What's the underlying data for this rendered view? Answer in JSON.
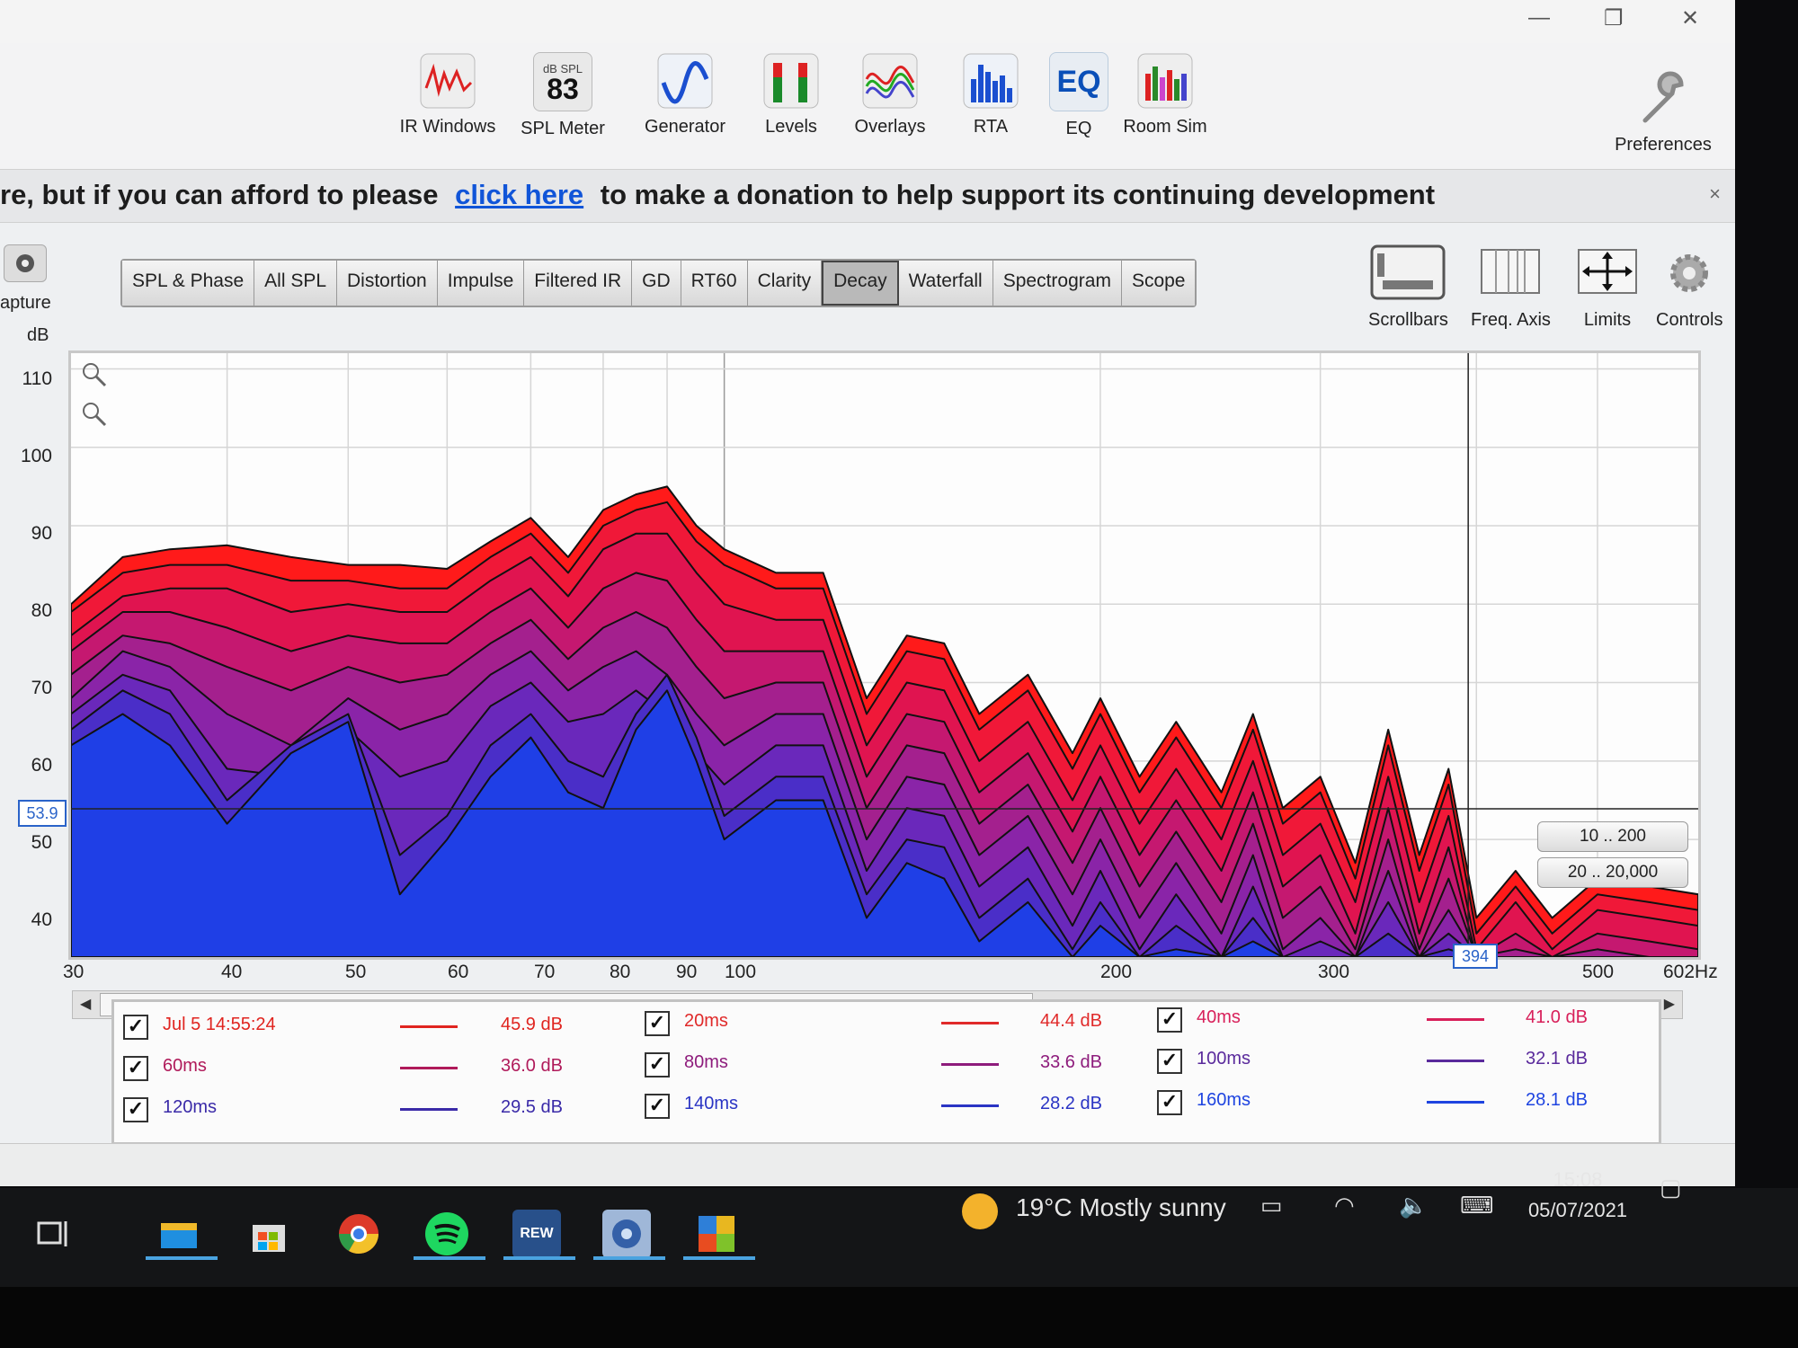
{
  "toolbar": {
    "items": [
      {
        "label": "IR Windows",
        "icon": "ir-windows-icon"
      },
      {
        "label": "SPL Meter",
        "icon": "spl-meter-icon",
        "badge_top": "dB SPL",
        "badge_value": "83"
      },
      {
        "label": "Generator",
        "icon": "generator-icon"
      },
      {
        "label": "Levels",
        "icon": "levels-icon"
      },
      {
        "label": "Overlays",
        "icon": "overlays-icon"
      },
      {
        "label": "RTA",
        "icon": "rta-icon"
      },
      {
        "label": "EQ",
        "icon": "eq-icon",
        "badge": "EQ"
      },
      {
        "label": "Room Sim",
        "icon": "room-sim-icon"
      },
      {
        "label": "Preferences",
        "icon": "wrench-icon"
      }
    ]
  },
  "banner": {
    "text_before": "re, but if you can afford to please",
    "link": "click here",
    "text_after": "to make a donation to help support its continuing development",
    "close": "×"
  },
  "left_panel": {
    "capture_label": "apture",
    "y_unit": "dB"
  },
  "tabs": [
    {
      "label": "SPL & Phase",
      "active": false
    },
    {
      "label": "All SPL",
      "active": false
    },
    {
      "label": "Distortion",
      "active": false
    },
    {
      "label": "Impulse",
      "active": false
    },
    {
      "label": "Filtered IR",
      "active": false
    },
    {
      "label": "GD",
      "active": false
    },
    {
      "label": "RT60",
      "active": false
    },
    {
      "label": "Clarity",
      "active": false
    },
    {
      "label": "Decay",
      "active": true
    },
    {
      "label": "Waterfall",
      "active": false
    },
    {
      "label": "Spectrogram",
      "active": false
    },
    {
      "label": "Scope",
      "active": false
    }
  ],
  "right_tools": [
    {
      "label": "Scrollbars",
      "icon": "scrollbars-icon"
    },
    {
      "label": "Freq. Axis",
      "icon": "freq-axis-icon"
    },
    {
      "label": "Limits",
      "icon": "limits-icon"
    },
    {
      "label": "Controls",
      "icon": "gear-icon"
    }
  ],
  "cursor": {
    "y_readout": "53.9",
    "x_readout": "394"
  },
  "range_buttons": [
    "10 .. 200",
    "20 .. 20,000"
  ],
  "chart_data": {
    "type": "area",
    "x_scale": "log",
    "xlim": [
      30,
      602
    ],
    "ylim": [
      35,
      112
    ],
    "xlabel": "",
    "ylabel": "dB",
    "x_ticks": [
      "30",
      "40",
      "50",
      "60",
      "70",
      "80",
      "90",
      "100",
      "200",
      "300",
      "500",
      "602Hz"
    ],
    "y_ticks": [
      "110",
      "100",
      "90",
      "80",
      "70",
      "60",
      "50",
      "40"
    ],
    "grid": true,
    "series": [
      {
        "name": "Jul 5 14:55:24",
        "color": "#ff1a1a",
        "x": [
          30,
          33,
          36,
          40,
          45,
          50,
          55,
          60,
          65,
          70,
          75,
          80,
          85,
          90,
          95,
          100,
          110,
          120,
          130,
          140,
          150,
          160,
          175,
          190,
          200,
          215,
          230,
          250,
          265,
          280,
          300,
          320,
          340,
          360,
          380,
          400,
          430,
          460,
          500,
          550,
          602
        ],
        "values": [
          80,
          86,
          87,
          87.5,
          86,
          85,
          85,
          84.5,
          88,
          91,
          86,
          92,
          94,
          95,
          90,
          87,
          84,
          84,
          68,
          76,
          75,
          66,
          71,
          61,
          68,
          58,
          65,
          56,
          66,
          54,
          58,
          47,
          64,
          48,
          59,
          40,
          46,
          40,
          45,
          44,
          43
        ]
      },
      {
        "name": "20ms",
        "color": "#f01838",
        "x": [
          30,
          33,
          36,
          40,
          45,
          50,
          55,
          60,
          65,
          70,
          75,
          80,
          85,
          90,
          95,
          100,
          110,
          120,
          130,
          140,
          150,
          160,
          175,
          190,
          200,
          215,
          230,
          250,
          265,
          280,
          300,
          320,
          340,
          360,
          380,
          400,
          430,
          460,
          500,
          550,
          602
        ],
        "values": [
          79,
          84,
          85,
          85,
          83,
          83,
          82,
          82,
          86,
          89,
          84,
          90,
          92,
          93,
          88,
          85,
          82,
          82,
          66,
          74,
          73,
          64,
          69,
          59,
          66,
          56,
          63,
          54,
          64,
          52,
          56,
          45,
          62,
          46,
          57,
          38,
          44,
          38,
          43,
          42,
          41
        ]
      },
      {
        "name": "40ms",
        "color": "#e01450",
        "x": [
          30,
          33,
          36,
          40,
          45,
          50,
          55,
          60,
          65,
          70,
          75,
          80,
          85,
          90,
          95,
          100,
          110,
          120,
          130,
          140,
          150,
          160,
          175,
          190,
          200,
          215,
          230,
          250,
          265,
          280,
          300,
          320,
          340,
          360,
          380,
          400,
          430,
          460,
          500,
          550,
          602
        ],
        "values": [
          76,
          81,
          82,
          82,
          79,
          80,
          79,
          79,
          83,
          86,
          81,
          87,
          89,
          89,
          84,
          80,
          78,
          78,
          62,
          70,
          69,
          60,
          65,
          55,
          62,
          52,
          59,
          50,
          60,
          48,
          52,
          42,
          58,
          42,
          53,
          36,
          42,
          36,
          41,
          40,
          39
        ]
      },
      {
        "name": "60ms",
        "color": "#c51870",
        "x": [
          30,
          33,
          36,
          40,
          45,
          50,
          55,
          60,
          65,
          70,
          75,
          80,
          85,
          90,
          95,
          100,
          110,
          120,
          130,
          140,
          150,
          160,
          175,
          190,
          200,
          215,
          230,
          250,
          265,
          280,
          300,
          320,
          340,
          360,
          380,
          400,
          430,
          460,
          500,
          550,
          602
        ],
        "values": [
          74,
          79,
          79,
          77,
          74,
          76,
          75,
          75,
          79,
          82,
          77,
          82,
          84,
          83,
          78,
          74,
          74,
          74,
          58,
          66,
          65,
          56,
          61,
          51,
          58,
          48,
          55,
          46,
          56,
          44,
          48,
          38,
          54,
          38,
          49,
          35,
          38,
          35,
          38,
          37,
          36
        ]
      },
      {
        "name": "80ms",
        "color": "#a4208e",
        "x": [
          30,
          33,
          36,
          40,
          45,
          50,
          55,
          60,
          65,
          70,
          75,
          80,
          85,
          90,
          95,
          100,
          110,
          120,
          130,
          140,
          150,
          160,
          175,
          190,
          200,
          215,
          230,
          250,
          265,
          280,
          300,
          320,
          340,
          360,
          380,
          400,
          430,
          460,
          500,
          550,
          602
        ],
        "values": [
          71,
          76,
          75,
          72,
          69,
          72,
          70,
          71,
          75,
          78,
          73,
          77,
          79,
          77,
          72,
          68,
          70,
          70,
          54,
          62,
          61,
          52,
          57,
          47,
          54,
          44,
          51,
          42,
          52,
          40,
          44,
          36,
          50,
          36,
          45,
          35,
          36,
          35,
          36,
          35,
          35
        ]
      },
      {
        "name": "100ms",
        "color": "#8a24a8",
        "x": [
          30,
          33,
          36,
          40,
          45,
          50,
          55,
          60,
          65,
          70,
          75,
          80,
          85,
          90,
          95,
          100,
          110,
          120,
          130,
          140,
          150,
          160,
          175,
          190,
          200,
          215,
          230,
          250,
          265,
          280,
          300,
          320,
          340,
          360,
          380,
          400,
          430,
          460,
          500,
          550,
          602
        ],
        "values": [
          68,
          74,
          72,
          66,
          62,
          68,
          64,
          66,
          71,
          74,
          69,
          72,
          74,
          71,
          66,
          62,
          66,
          66,
          50,
          58,
          57,
          48,
          53,
          43,
          50,
          40,
          47,
          38,
          48,
          36,
          40,
          35,
          46,
          35,
          41,
          35,
          35,
          35,
          35,
          35,
          35
        ]
      },
      {
        "name": "120ms",
        "color": "#6a28bb",
        "x": [
          30,
          33,
          36,
          40,
          45,
          50,
          55,
          60,
          65,
          70,
          75,
          80,
          85,
          90,
          95,
          100,
          110,
          120,
          130,
          140,
          150,
          160,
          175,
          190,
          200,
          215,
          230,
          250,
          265,
          280,
          300,
          320,
          340,
          360,
          380,
          400,
          430,
          460,
          500,
          550,
          602
        ],
        "values": [
          66,
          71,
          69,
          59,
          58,
          64,
          58,
          60,
          67,
          70,
          65,
          66,
          69,
          66,
          61,
          57,
          62,
          62,
          46,
          54,
          53,
          44,
          49,
          39,
          46,
          36,
          43,
          35,
          44,
          35,
          37,
          35,
          42,
          35,
          38,
          35,
          35,
          35,
          35,
          35,
          35
        ]
      },
      {
        "name": "140ms",
        "color": "#4a2ec8",
        "x": [
          30,
          33,
          36,
          40,
          45,
          50,
          55,
          60,
          65,
          70,
          75,
          80,
          85,
          90,
          95,
          100,
          110,
          120,
          130,
          140,
          150,
          160,
          175,
          190,
          200,
          215,
          230,
          250,
          265,
          280,
          300,
          320,
          340,
          360,
          380,
          400,
          430,
          460,
          500,
          550,
          602
        ],
        "values": [
          64,
          69,
          66,
          55,
          62,
          66,
          48,
          53,
          62,
          66,
          60,
          58,
          66,
          71,
          63,
          53,
          58,
          58,
          43,
          50,
          49,
          40,
          45,
          36,
          42,
          35,
          39,
          35,
          40,
          35,
          35,
          35,
          38,
          35,
          36,
          35,
          35,
          35,
          35,
          35,
          35
        ]
      },
      {
        "name": "160ms",
        "color": "#1f3fe6",
        "x": [
          30,
          33,
          36,
          40,
          45,
          50,
          55,
          60,
          65,
          70,
          75,
          80,
          85,
          90,
          95,
          100,
          110,
          120,
          130,
          140,
          150,
          160,
          175,
          190,
          200,
          215,
          230,
          250,
          265,
          280,
          300,
          320,
          340,
          360,
          380,
          400,
          430,
          460,
          500,
          550,
          602
        ],
        "values": [
          62,
          66,
          62,
          52,
          61,
          65,
          43,
          50,
          58,
          63,
          56,
          54,
          64,
          69,
          60,
          50,
          55,
          55,
          40,
          47,
          45,
          37,
          42,
          35,
          39,
          35,
          36,
          35,
          37,
          35,
          35,
          35,
          35,
          35,
          35,
          35,
          35,
          35,
          35,
          35,
          35
        ]
      }
    ]
  },
  "legend": [
    {
      "name": "Jul 5 14:55:24",
      "value": "45.9 dB",
      "color": "#e0241f"
    },
    {
      "name": "20ms",
      "value": "44.4 dB",
      "color": "#e02a2a"
    },
    {
      "name": "40ms",
      "value": "41.0 dB",
      "color": "#d8205a"
    },
    {
      "name": "60ms",
      "value": "36.0 dB",
      "color": "#b01a5a"
    },
    {
      "name": "80ms",
      "value": "33.6 dB",
      "color": "#8e1c7c"
    },
    {
      "name": "100ms",
      "value": "32.1 dB",
      "color": "#5a2a9c"
    },
    {
      "name": "120ms",
      "value": "29.5 dB",
      "color": "#3a2aa8"
    },
    {
      "name": "140ms",
      "value": "28.2 dB",
      "color": "#2a34c4"
    },
    {
      "name": "160ms",
      "value": "28.1 dB",
      "color": "#1e44e0"
    }
  ],
  "taskbar": {
    "weather_temp": "19°C",
    "weather_text": "Mostly sunny",
    "time": "15:08",
    "date": "05/07/2021",
    "apps": [
      "task-view-icon",
      "file-explorer-icon",
      "store-icon",
      "chrome-icon",
      "spotify-icon",
      "rew-icon",
      "dsp-icon",
      "app-icon"
    ],
    "rew_label": "REW"
  }
}
